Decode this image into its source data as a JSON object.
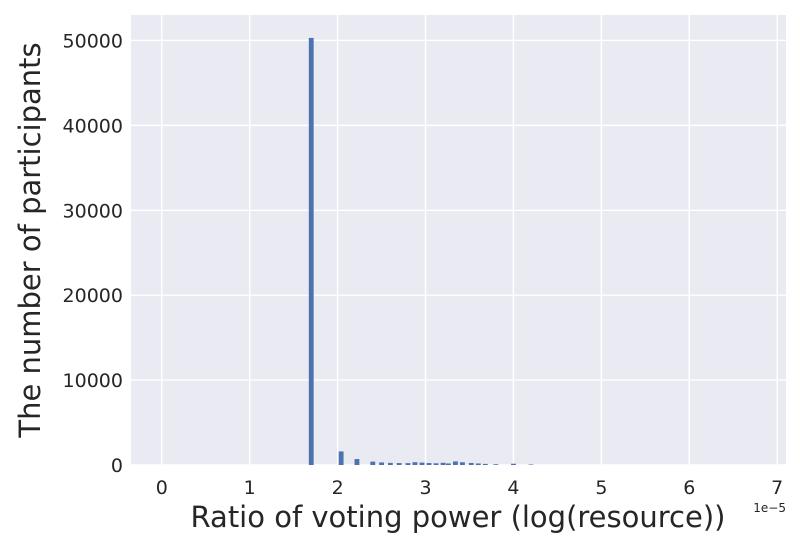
{
  "chart_data": {
    "type": "bar",
    "xlabel": "Ratio of voting power (log(resource))",
    "ylabel": "The number of participants",
    "x_multiplier": "1e−5",
    "xlim": [
      -0.35,
      7.1
    ],
    "ylim": [
      0,
      53000
    ],
    "x_ticks": [
      0,
      1,
      2,
      3,
      4,
      5,
      6,
      7
    ],
    "y_ticks": [
      0,
      10000,
      20000,
      30000,
      40000,
      50000
    ],
    "grid": true,
    "bar_color": "#4c72b0",
    "plot_background": "#eaeaf2",
    "bin_width": 0.055,
    "bins": [
      {
        "x": 1.7,
        "count": 50300
      },
      {
        "x": 2.04,
        "count": 1600
      },
      {
        "x": 2.22,
        "count": 700
      },
      {
        "x": 2.4,
        "count": 400
      },
      {
        "x": 2.5,
        "count": 300
      },
      {
        "x": 2.6,
        "count": 250
      },
      {
        "x": 2.7,
        "count": 230
      },
      {
        "x": 2.8,
        "count": 220
      },
      {
        "x": 2.88,
        "count": 330
      },
      {
        "x": 2.96,
        "count": 280
      },
      {
        "x": 3.04,
        "count": 230
      },
      {
        "x": 3.12,
        "count": 200
      },
      {
        "x": 3.2,
        "count": 260
      },
      {
        "x": 3.26,
        "count": 180
      },
      {
        "x": 3.34,
        "count": 420
      },
      {
        "x": 3.42,
        "count": 320
      },
      {
        "x": 3.52,
        "count": 240
      },
      {
        "x": 3.6,
        "count": 180
      },
      {
        "x": 3.68,
        "count": 130
      },
      {
        "x": 3.8,
        "count": 90
      },
      {
        "x": 4.0,
        "count": 150
      },
      {
        "x": 4.2,
        "count": 60
      }
    ]
  }
}
